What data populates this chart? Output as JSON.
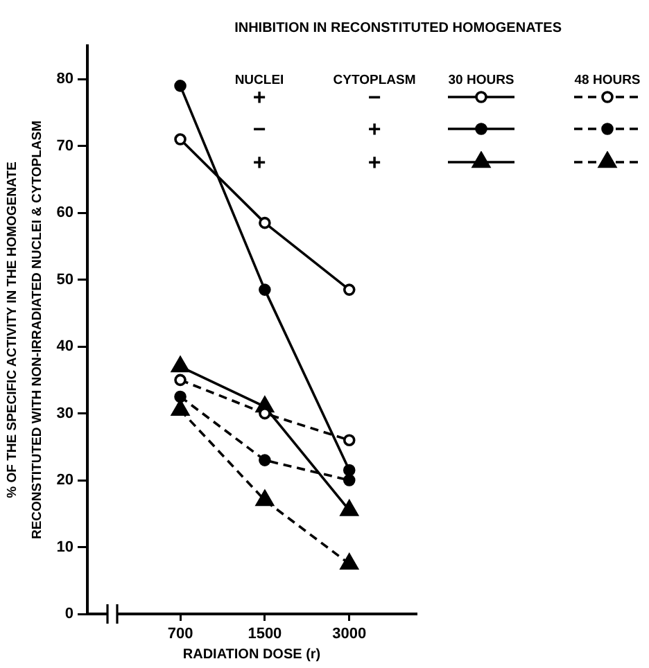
{
  "chart_data": {
    "type": "line",
    "title": "INHIBITION IN RECONSTITUTED HOMOGENATES",
    "xlabel": "RADIATION DOSE (r)",
    "ylabel": "% OF THE SPECIFIC ACTIVITY IN THE HOMOGENATE\nRECONSTITUTED WITH NON-IRRADIATED NUCLEI & CYTOPLASM",
    "categories": [
      "700",
      "1500",
      "3000"
    ],
    "series": [
      {
        "color": "#000000",
        "colors": [
          "#ffffff",
          "#ffffff",
          "#ffffff"
        ],
        "marker": "circle",
        "line_style": "solid",
        "values": [
          71,
          58.5,
          48.5
        ]
      },
      {
        "color": "#000000",
        "colors": [
          "#ffffff",
          "#ffffff",
          "#ffffff"
        ],
        "marker": "circle",
        "line_style": "dashed",
        "values": [
          35,
          30,
          26
        ]
      },
      {
        "color": "#000000",
        "marker": "circle",
        "line_style": "solid",
        "values": [
          79,
          48.5,
          21.5
        ]
      },
      {
        "color": "#000000",
        "marker": "circle",
        "line_style": "dashed",
        "values": [
          32.5,
          23,
          20
        ]
      },
      {
        "color": "#000000",
        "marker": "triangle",
        "line_style": "solid",
        "values": [
          37,
          31,
          15.5
        ]
      },
      {
        "color": "#000000",
        "marker": "triangle",
        "line_style": "dashed",
        "values": [
          30.5,
          17,
          7.5
        ]
      }
    ],
    "ylim": [
      0,
      85
    ],
    "yticks": [
      0,
      10,
      20,
      30,
      40,
      50,
      60,
      70,
      80
    ],
    "grid": false,
    "annotations": [
      "NUCLEI",
      "CYTOPLASM",
      "30 HOURS",
      "48 HOURS",
      "+",
      "−",
      "−",
      "+",
      "+",
      "+"
    ]
  }
}
